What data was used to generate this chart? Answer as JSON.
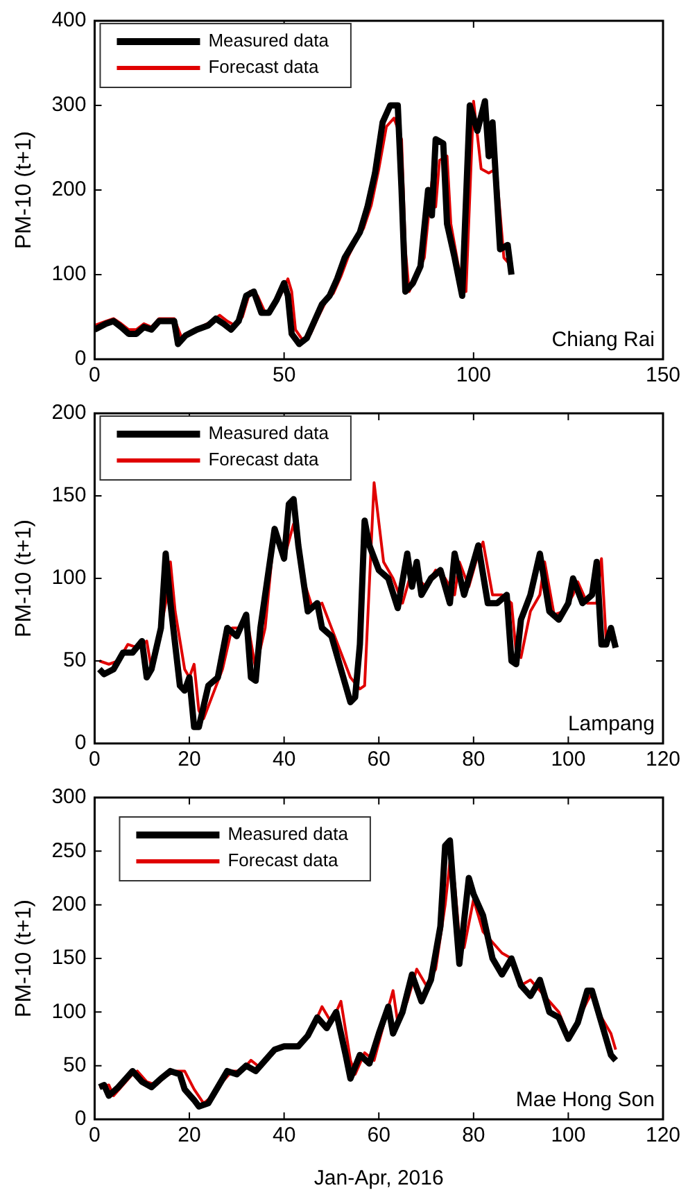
{
  "chart_data": [
    {
      "type": "line",
      "ylabel": "PM-10 (t+1)",
      "xlim": [
        0,
        150
      ],
      "xticks": [
        0,
        50,
        100,
        150
      ],
      "ylim": [
        0,
        400
      ],
      "yticks": [
        0,
        100,
        200,
        300,
        400
      ],
      "grid": false,
      "legend": "top left",
      "marker": "none",
      "annotations": [
        "Chiang Rai"
      ],
      "series": [
        {
          "name": "Measured data",
          "color": "#000000",
          "x": [
            0,
            3,
            5,
            7,
            9,
            11,
            13,
            15,
            17,
            19,
            21,
            22,
            24,
            27,
            30,
            32,
            34,
            36,
            38,
            40,
            42,
            44,
            46,
            48,
            50,
            51,
            52,
            54,
            56,
            58,
            60,
            62,
            64,
            66,
            68,
            70,
            72,
            74,
            76,
            78,
            80,
            81,
            82,
            84,
            86,
            88,
            89,
            90,
            92,
            93,
            95,
            97,
            99,
            101,
            103,
            104,
            105,
            107,
            109,
            110
          ],
          "values": [
            35,
            42,
            45,
            38,
            30,
            30,
            38,
            35,
            45,
            45,
            45,
            18,
            28,
            35,
            40,
            48,
            42,
            35,
            45,
            75,
            80,
            55,
            55,
            70,
            90,
            75,
            30,
            18,
            25,
            45,
            65,
            75,
            95,
            120,
            135,
            150,
            180,
            220,
            280,
            300,
            300,
            200,
            80,
            90,
            110,
            200,
            170,
            260,
            255,
            160,
            120,
            75,
            300,
            270,
            305,
            240,
            280,
            130,
            135,
            100
          ]
        },
        {
          "name": "Forecast data",
          "color": "#e00000",
          "x": [
            0,
            3,
            5,
            7,
            9,
            11,
            13,
            15,
            17,
            19,
            21,
            23,
            25,
            28,
            31,
            33,
            35,
            37,
            39,
            41,
            43,
            45,
            47,
            49,
            51,
            52,
            53,
            55,
            57,
            59,
            61,
            63,
            65,
            67,
            69,
            71,
            73,
            75,
            77,
            79,
            81,
            82,
            83,
            85,
            87,
            89,
            90,
            91,
            93,
            94,
            96,
            98,
            100,
            102,
            104,
            106,
            108,
            110
          ],
          "values": [
            40,
            45,
            48,
            42,
            35,
            35,
            42,
            38,
            48,
            48,
            48,
            25,
            30,
            38,
            45,
            52,
            45,
            40,
            50,
            80,
            75,
            55,
            60,
            75,
            95,
            80,
            35,
            22,
            30,
            50,
            68,
            78,
            98,
            122,
            140,
            155,
            182,
            225,
            275,
            285,
            260,
            130,
            80,
            100,
            120,
            210,
            180,
            235,
            240,
            160,
            110,
            80,
            305,
            225,
            220,
            225,
            120,
            110
          ]
        }
      ]
    },
    {
      "type": "line",
      "ylabel": "PM-10 (t+1)",
      "xlim": [
        0,
        120
      ],
      "xticks": [
        0,
        20,
        40,
        60,
        80,
        100,
        120
      ],
      "ylim": [
        0,
        200
      ],
      "yticks": [
        0,
        50,
        100,
        150,
        200
      ],
      "grid": false,
      "legend": "top left",
      "marker": "none",
      "annotations": [
        "Lampang"
      ],
      "series": [
        {
          "name": "Measured data",
          "color": "#000000",
          "x": [
            1,
            2,
            4,
            6,
            8,
            10,
            11,
            12,
            14,
            15,
            16,
            18,
            19,
            20,
            21,
            22,
            24,
            26,
            28,
            30,
            32,
            33,
            34,
            35,
            37,
            38,
            40,
            41,
            42,
            43,
            45,
            47,
            48,
            50,
            52,
            54,
            55,
            56,
            57,
            58,
            60,
            62,
            64,
            66,
            67,
            68,
            69,
            71,
            73,
            75,
            76,
            78,
            80,
            81,
            83,
            85,
            87,
            88,
            89,
            90,
            92,
            94,
            96,
            98,
            100,
            101,
            103,
            105,
            106,
            107,
            108,
            109,
            110
          ],
          "values": [
            45,
            42,
            45,
            55,
            55,
            62,
            40,
            45,
            70,
            115,
            85,
            35,
            32,
            40,
            10,
            10,
            35,
            40,
            70,
            65,
            78,
            40,
            38,
            70,
            110,
            130,
            112,
            145,
            148,
            120,
            80,
            85,
            70,
            65,
            45,
            25,
            28,
            60,
            135,
            120,
            105,
            100,
            82,
            115,
            95,
            110,
            90,
            100,
            105,
            85,
            115,
            90,
            110,
            120,
            85,
            85,
            90,
            50,
            48,
            75,
            90,
            115,
            80,
            75,
            85,
            100,
            85,
            90,
            110,
            60,
            60,
            70,
            58
          ]
        },
        {
          "name": "Forecast data",
          "color": "#e00000",
          "x": [
            1,
            3,
            5,
            7,
            9,
            11,
            12,
            13,
            15,
            16,
            17,
            19,
            20,
            21,
            22,
            23,
            25,
            27,
            29,
            31,
            32,
            34,
            36,
            38,
            40,
            42,
            44,
            46,
            48,
            50,
            52,
            54,
            56,
            57,
            59,
            61,
            63,
            65,
            67,
            68,
            70,
            72,
            74,
            76,
            77,
            79,
            81,
            82,
            84,
            86,
            88,
            89,
            90,
            92,
            94,
            95,
            97,
            99,
            101,
            102,
            104,
            106,
            107,
            108,
            110
          ],
          "values": [
            50,
            48,
            50,
            60,
            58,
            62,
            45,
            55,
            85,
            110,
            80,
            45,
            40,
            48,
            20,
            15,
            30,
            45,
            70,
            70,
            78,
            45,
            70,
            130,
            112,
            133,
            100,
            82,
            85,
            70,
            55,
            40,
            33,
            35,
            158,
            110,
            100,
            85,
            105,
            100,
            95,
            105,
            100,
            90,
            110,
            95,
            115,
            122,
            90,
            90,
            85,
            55,
            52,
            80,
            90,
            110,
            78,
            80,
            90,
            98,
            85,
            85,
            112,
            62,
            65
          ]
        }
      ]
    },
    {
      "type": "line",
      "ylabel": "PM-10 (t+1)",
      "xlabel": "Jan-Apr, 2016",
      "xlim": [
        0,
        120
      ],
      "xticks": [
        0,
        20,
        40,
        60,
        80,
        100,
        120
      ],
      "ylim": [
        0,
        300
      ],
      "yticks": [
        0,
        50,
        100,
        150,
        200,
        250,
        300
      ],
      "grid": false,
      "legend": "top left",
      "marker": "none",
      "annotations": [
        "Mae Hong Son"
      ],
      "series": [
        {
          "name": "Measured data",
          "color": "#000000",
          "x": [
            1,
            2,
            3,
            5,
            7,
            8,
            10,
            12,
            14,
            16,
            18,
            19,
            21,
            22,
            24,
            26,
            28,
            30,
            32,
            34,
            36,
            38,
            40,
            43,
            45,
            47,
            49,
            51,
            53,
            54,
            56,
            58,
            60,
            62,
            63,
            65,
            67,
            69,
            71,
            73,
            74,
            75,
            76,
            77,
            79,
            80,
            82,
            84,
            86,
            88,
            90,
            92,
            94,
            96,
            98,
            100,
            102,
            104,
            105,
            107,
            109,
            110
          ],
          "values": [
            30,
            32,
            22,
            30,
            40,
            45,
            35,
            30,
            38,
            45,
            42,
            28,
            18,
            12,
            15,
            30,
            45,
            42,
            50,
            45,
            55,
            65,
            68,
            68,
            78,
            95,
            85,
            100,
            60,
            38,
            60,
            52,
            80,
            105,
            80,
            100,
            135,
            110,
            130,
            180,
            255,
            260,
            200,
            145,
            225,
            210,
            190,
            150,
            135,
            150,
            125,
            115,
            130,
            100,
            95,
            75,
            90,
            120,
            120,
            90,
            60,
            55
          ]
        },
        {
          "name": "Forecast data",
          "color": "#e00000",
          "x": [
            1,
            3,
            4,
            6,
            8,
            9,
            11,
            13,
            15,
            17,
            19,
            21,
            23,
            25,
            27,
            29,
            31,
            33,
            35,
            37,
            39,
            42,
            44,
            46,
            48,
            50,
            52,
            54,
            55,
            57,
            59,
            61,
            63,
            64,
            66,
            68,
            70,
            72,
            74,
            75,
            76,
            77,
            78,
            80,
            82,
            84,
            86,
            88,
            90,
            92,
            94,
            96,
            98,
            100,
            102,
            104,
            105,
            107,
            109,
            110
          ],
          "values": [
            30,
            32,
            22,
            32,
            42,
            45,
            35,
            32,
            40,
            45,
            45,
            28,
            15,
            22,
            35,
            45,
            45,
            55,
            48,
            58,
            68,
            68,
            72,
            85,
            105,
            90,
            110,
            55,
            42,
            62,
            55,
            88,
            120,
            90,
            110,
            140,
            125,
            140,
            200,
            240,
            220,
            170,
            160,
            205,
            175,
            165,
            155,
            150,
            125,
            130,
            120,
            110,
            100,
            78,
            92,
            110,
            118,
            95,
            80,
            65
          ]
        }
      ]
    }
  ]
}
